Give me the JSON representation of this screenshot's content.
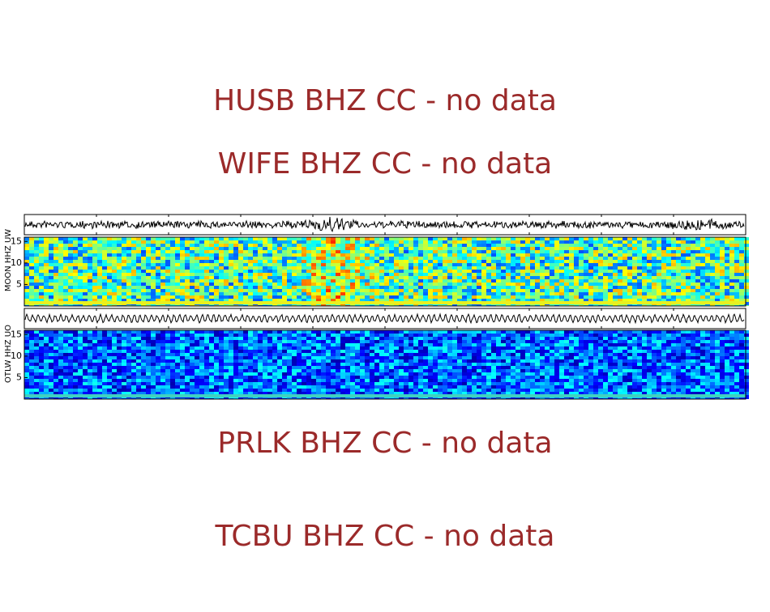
{
  "messages": [
    "HUSB BHZ CC - no data",
    "WIFE BHZ CC - no data",
    "PRLK BHZ CC - no data",
    "TCBU BHZ CC - no data"
  ],
  "panels": [
    {
      "label": "MOON HHZ UW",
      "ylim": [
        0,
        16
      ],
      "yticks": [
        5,
        10,
        15
      ]
    },
    {
      "label": "OTLW HHZ UO",
      "ylim": [
        0,
        16
      ],
      "yticks": [
        5,
        10,
        15
      ]
    }
  ]
}
